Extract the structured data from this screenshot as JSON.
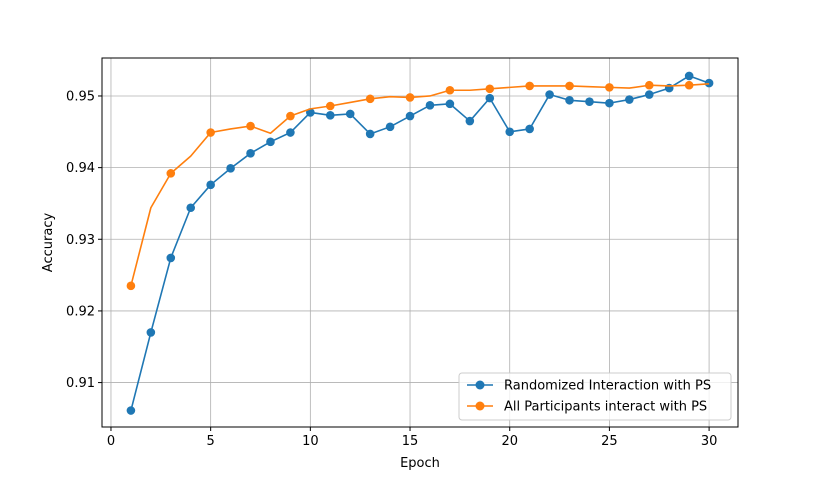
{
  "chart_data": {
    "type": "line",
    "title": "",
    "xlabel": "Epoch",
    "ylabel": "Accuracy",
    "xlim": [
      -0.45,
      31.45
    ],
    "ylim": [
      0.9038,
      0.9553
    ],
    "xticks": [
      0,
      5,
      10,
      15,
      20,
      25,
      30
    ],
    "yticks": [
      0.91,
      0.92,
      0.93,
      0.94,
      0.95
    ],
    "xtick_labels": [
      "0",
      "5",
      "10",
      "15",
      "20",
      "25",
      "30"
    ],
    "ytick_labels": [
      "0.91",
      "0.92",
      "0.93",
      "0.94",
      "0.95"
    ],
    "grid": true,
    "legend_position": "lower-right",
    "series": [
      {
        "name": "Randomized Interaction with PS",
        "color": "#1f77b4",
        "marker_every": 1,
        "x": [
          1,
          2,
          3,
          4,
          5,
          6,
          7,
          8,
          9,
          10,
          11,
          12,
          13,
          14,
          15,
          16,
          17,
          18,
          19,
          20,
          21,
          22,
          23,
          24,
          25,
          26,
          27,
          28,
          29,
          30
        ],
        "values": [
          0.9061,
          0.917,
          0.9274,
          0.9344,
          0.9376,
          0.9399,
          0.942,
          0.9436,
          0.9449,
          0.9477,
          0.9473,
          0.9475,
          0.9447,
          0.9457,
          0.9472,
          0.9487,
          0.9489,
          0.9465,
          0.9497,
          0.945,
          0.9454,
          0.9502,
          0.9494,
          0.9492,
          0.949,
          0.9495,
          0.9502,
          0.9511,
          0.9528,
          0.9518
        ]
      },
      {
        "name": "All Participants interact with PS",
        "color": "#ff7f0e",
        "marker_every": 2,
        "x": [
          1,
          2,
          3,
          4,
          5,
          6,
          7,
          8,
          9,
          10,
          11,
          12,
          13,
          14,
          15,
          16,
          17,
          18,
          19,
          20,
          21,
          22,
          23,
          24,
          25,
          26,
          27,
          28,
          29,
          30
        ],
        "values": [
          0.9235,
          0.9344,
          0.9392,
          0.9416,
          0.9449,
          0.9454,
          0.9458,
          0.9448,
          0.9472,
          0.9482,
          0.9486,
          0.9491,
          0.9496,
          0.9499,
          0.9498,
          0.95,
          0.9508,
          0.9508,
          0.951,
          0.9512,
          0.9514,
          0.9514,
          0.9514,
          0.9513,
          0.9512,
          0.9511,
          0.9515,
          0.9514,
          0.9515,
          0.9517
        ]
      }
    ]
  }
}
